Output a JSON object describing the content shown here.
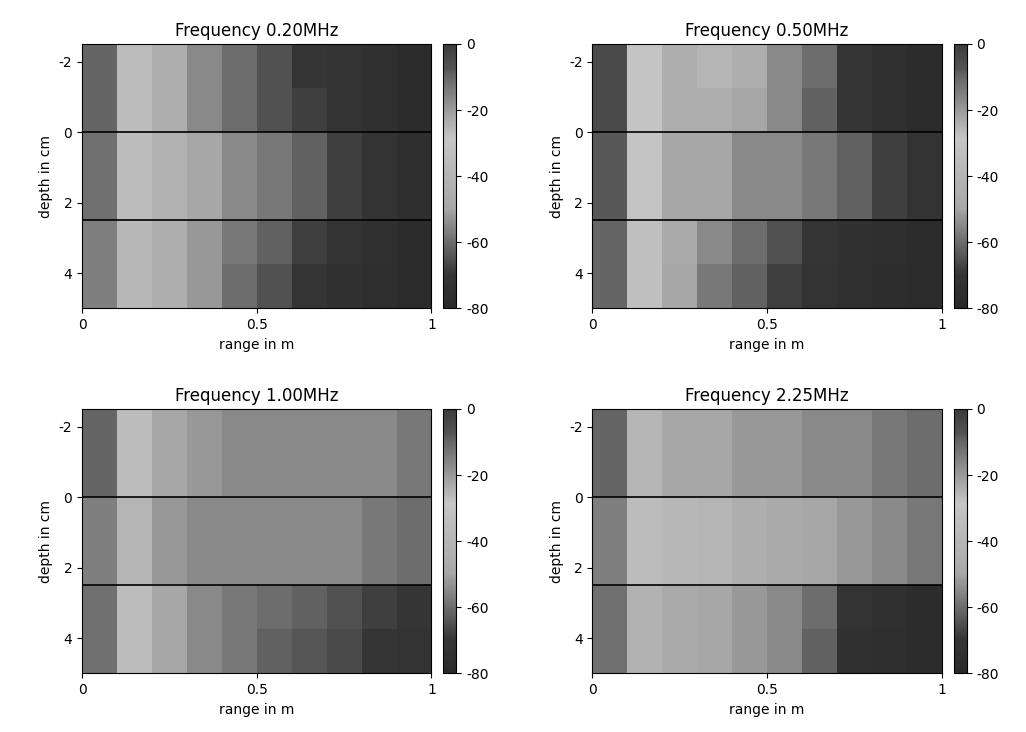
{
  "chart_data": [
    {
      "type": "heatmap",
      "title": "Frequency 0.20MHz",
      "x_label": "range in m",
      "y_label": "depth in cm",
      "xlim": [
        0,
        1
      ],
      "xticks": [
        0,
        0.5,
        1
      ],
      "ylim": [
        5,
        -2.5
      ],
      "yticks": [
        -2,
        0,
        2,
        4
      ],
      "x_edges": [
        0,
        0.1,
        0.2,
        0.3,
        0.4,
        0.5,
        0.6,
        0.7,
        0.8,
        0.9,
        1
      ],
      "y_edges": [
        -2.5,
        -1.25,
        0,
        1.25,
        2.5,
        3.75,
        5
      ],
      "cells": [
        [
          -10,
          -35,
          -45,
          -55,
          -60,
          -65,
          -70,
          -72,
          -75,
          -78
        ],
        [
          -10,
          -35,
          -45,
          -55,
          -60,
          -65,
          -68,
          -72,
          -75,
          -78
        ],
        [
          -12,
          -35,
          -42,
          -50,
          -55,
          -58,
          -62,
          -68,
          -72,
          -76
        ],
        [
          -12,
          -35,
          -42,
          -50,
          -55,
          -58,
          -62,
          -68,
          -72,
          -76
        ],
        [
          -15,
          -38,
          -45,
          -52,
          -58,
          -62,
          -68,
          -72,
          -75,
          -78
        ],
        [
          -15,
          -38,
          -45,
          -52,
          -60,
          -65,
          -70,
          -74,
          -76,
          -78
        ]
      ],
      "colorbar_range": [
        -80,
        0
      ],
      "colorbar_ticks": [
        0,
        -20,
        -40,
        -60,
        -80
      ],
      "hlines": [
        0,
        2.5
      ]
    },
    {
      "type": "heatmap",
      "title": "Frequency 0.50MHz",
      "x_label": "range in m",
      "y_label": "depth in cm",
      "xlim": [
        0,
        1
      ],
      "xticks": [
        0,
        0.5,
        1
      ],
      "ylim": [
        5,
        -2.5
      ],
      "yticks": [
        -2,
        0,
        2,
        4
      ],
      "x_edges": [
        0,
        0.1,
        0.2,
        0.3,
        0.4,
        0.5,
        0.6,
        0.7,
        0.8,
        0.9,
        1
      ],
      "y_edges": [
        -2.5,
        -1.25,
        0,
        1.25,
        2.5,
        3.75,
        5
      ],
      "cells": [
        [
          -5,
          -30,
          -45,
          -40,
          -45,
          -55,
          -60,
          -70,
          -75,
          -78
        ],
        [
          -5,
          -30,
          -45,
          -45,
          -50,
          -55,
          -62,
          -70,
          -75,
          -78
        ],
        [
          -8,
          -30,
          -50,
          -50,
          -55,
          -55,
          -58,
          -62,
          -68,
          -72
        ],
        [
          -8,
          -30,
          -50,
          -50,
          -55,
          -55,
          -58,
          -62,
          -68,
          -72
        ],
        [
          -10,
          -32,
          -48,
          -55,
          -60,
          -65,
          -70,
          -74,
          -76,
          -78
        ],
        [
          -10,
          -32,
          -50,
          -58,
          -62,
          -68,
          -72,
          -75,
          -77,
          -78
        ]
      ],
      "colorbar_range": [
        -80,
        0
      ],
      "colorbar_ticks": [
        0,
        -20,
        -40,
        -60,
        -80
      ],
      "hlines": [
        0,
        2.5
      ]
    },
    {
      "type": "heatmap",
      "title": "Frequency 1.00MHz",
      "x_label": "range in m",
      "y_label": "depth in cm",
      "xlim": [
        0,
        1
      ],
      "xticks": [
        0,
        0.5,
        1
      ],
      "ylim": [
        5,
        -2.5
      ],
      "yticks": [
        -2,
        0,
        2,
        4
      ],
      "x_edges": [
        0,
        0.1,
        0.2,
        0.3,
        0.4,
        0.5,
        0.6,
        0.7,
        0.8,
        0.9,
        1
      ],
      "y_edges": [
        -2.5,
        -1.25,
        0,
        1.25,
        2.5,
        3.75,
        5
      ],
      "cells": [
        [
          -10,
          -35,
          -50,
          -52,
          -55,
          -55,
          -55,
          -55,
          -55,
          -58
        ],
        [
          -10,
          -35,
          -50,
          -52,
          -55,
          -55,
          -55,
          -55,
          -55,
          -58
        ],
        [
          -15,
          -40,
          -52,
          -55,
          -55,
          -55,
          -55,
          -55,
          -58,
          -60
        ],
        [
          -15,
          -40,
          -52,
          -55,
          -55,
          -55,
          -55,
          -55,
          -58,
          -60
        ],
        [
          -12,
          -35,
          -50,
          -55,
          -58,
          -60,
          -62,
          -65,
          -68,
          -70
        ],
        [
          -12,
          -35,
          -50,
          -55,
          -58,
          -62,
          -64,
          -66,
          -70,
          -72
        ]
      ],
      "colorbar_range": [
        -80,
        0
      ],
      "colorbar_ticks": [
        0,
        -20,
        -40,
        -60,
        -80
      ],
      "hlines": [
        0,
        2.5
      ]
    },
    {
      "type": "heatmap",
      "title": "Frequency 2.25MHz",
      "x_label": "range in m",
      "y_label": "depth in cm",
      "xlim": [
        0,
        1
      ],
      "xticks": [
        0,
        0.5,
        1
      ],
      "ylim": [
        5,
        -2.5
      ],
      "yticks": [
        -2,
        0,
        2,
        4
      ],
      "x_edges": [
        0,
        0.1,
        0.2,
        0.3,
        0.4,
        0.5,
        0.6,
        0.7,
        0.8,
        0.9,
        1
      ],
      "y_edges": [
        -2.5,
        -1.25,
        0,
        1.25,
        2.5,
        3.75,
        5
      ],
      "cells": [
        [
          -10,
          -40,
          -50,
          -50,
          -52,
          -52,
          -55,
          -55,
          -58,
          -60
        ],
        [
          -10,
          -40,
          -50,
          -50,
          -52,
          -52,
          -55,
          -55,
          -58,
          -60
        ],
        [
          -15,
          -35,
          -38,
          -40,
          -45,
          -48,
          -50,
          -52,
          -55,
          -58
        ],
        [
          -15,
          -35,
          -38,
          -40,
          -45,
          -48,
          -50,
          -52,
          -55,
          -58
        ],
        [
          -12,
          -42,
          -48,
          -50,
          -52,
          -55,
          -60,
          -72,
          -75,
          -78
        ],
        [
          -12,
          -42,
          -48,
          -50,
          -52,
          -55,
          -62,
          -74,
          -76,
          -78
        ]
      ],
      "colorbar_range": [
        -80,
        0
      ],
      "colorbar_ticks": [
        0,
        -20,
        -40,
        -60,
        -80
      ],
      "hlines": [
        0,
        2.5
      ]
    }
  ]
}
